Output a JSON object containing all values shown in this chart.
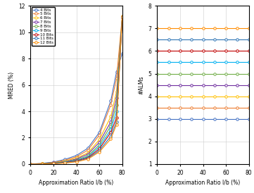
{
  "bits": [
    4,
    5,
    6,
    7,
    8,
    9,
    10,
    11,
    12
  ],
  "colors": [
    "#4472c4",
    "#ed7d31",
    "#ffc000",
    "#7030a0",
    "#70ad47",
    "#00b0f0",
    "#c00000",
    "#2e75b6",
    "#ff8c00"
  ],
  "x_points": [
    0,
    10,
    20,
    30,
    40,
    50,
    60,
    70,
    75,
    80
  ],
  "mred_data": {
    "4": [
      0.0,
      0.05,
      0.15,
      0.35,
      0.65,
      1.2,
      2.4,
      4.8,
      7.0,
      8.4
    ],
    "5": [
      0.0,
      0.04,
      0.12,
      0.28,
      0.55,
      1.05,
      2.2,
      4.5,
      6.5,
      11.2
    ],
    "6": [
      0.0,
      0.03,
      0.1,
      0.22,
      0.45,
      0.85,
      1.85,
      3.6,
      5.5,
      11.2
    ],
    "7": [
      0.0,
      0.02,
      0.08,
      0.18,
      0.38,
      0.75,
      1.65,
      3.2,
      5.0,
      11.1
    ],
    "8": [
      0.0,
      0.02,
      0.07,
      0.15,
      0.32,
      0.62,
      1.45,
      2.9,
      4.5,
      11.15
    ],
    "9": [
      0.0,
      0.015,
      0.06,
      0.13,
      0.28,
      0.55,
      1.3,
      2.6,
      4.0,
      11.15
    ],
    "10": [
      0.0,
      0.012,
      0.05,
      0.11,
      0.24,
      0.48,
      1.15,
      2.4,
      3.5,
      11.15
    ],
    "11": [
      0.0,
      0.01,
      0.04,
      0.09,
      0.2,
      0.42,
      1.02,
      2.1,
      3.2,
      11.15
    ],
    "12": [
      0.0,
      0.008,
      0.035,
      0.08,
      0.17,
      0.37,
      0.92,
      1.9,
      3.0,
      11.15
    ]
  },
  "alm_data": {
    "4": 3.0,
    "5": 3.5,
    "6": 4.0,
    "7": 4.5,
    "8": 5.0,
    "9": 5.5,
    "10": 6.0,
    "11": 6.5,
    "12": 7.0
  },
  "alm_x": [
    0,
    10,
    20,
    30,
    40,
    50,
    60,
    70,
    80
  ],
  "xlabel": "Approximation Ratio I/b (%)",
  "ylabel_left": "MRED (%)",
  "ylabel_right": "#ALMs",
  "xlim": [
    0,
    80
  ],
  "ylim_left": [
    0,
    12
  ],
  "ylim_right": [
    1,
    8
  ],
  "yticks_right": [
    1,
    2,
    3,
    4,
    5,
    6,
    7,
    8
  ],
  "legend_labels": [
    "4 Bits",
    "5 Bits",
    "6 Bits",
    "7 Bits",
    "8 Bits",
    "9 Bits",
    "10 Bits",
    "11 Bits",
    "12 Bits"
  ]
}
